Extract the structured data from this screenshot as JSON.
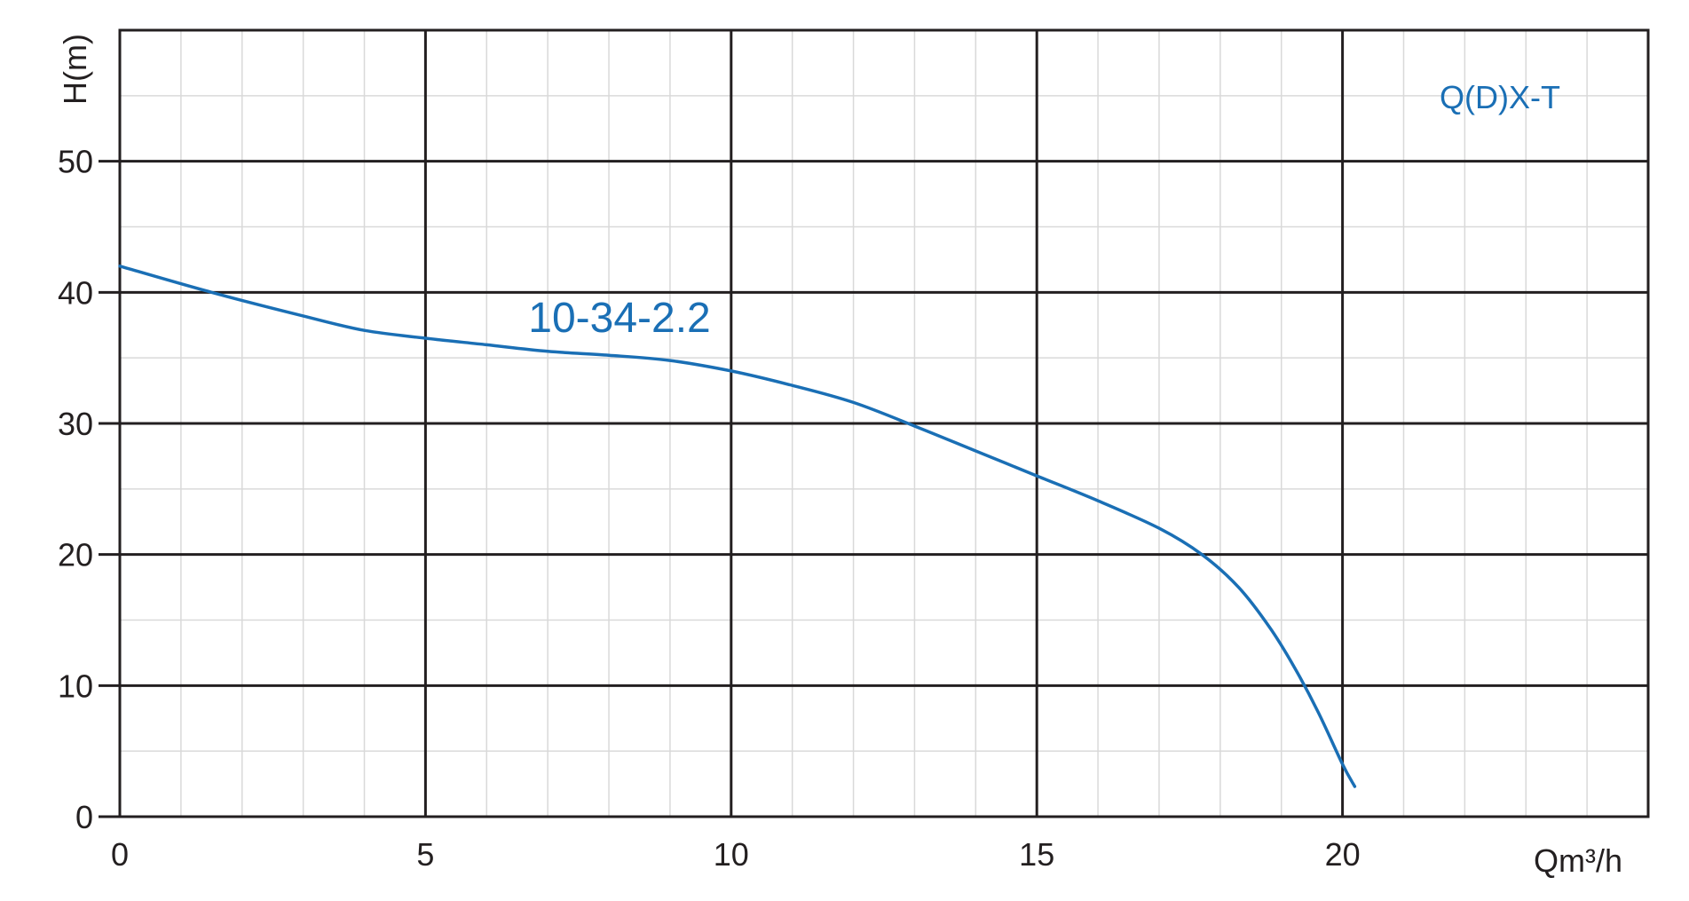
{
  "chart_data": {
    "type": "line",
    "model_label": "Q(D)X-T",
    "xlabel": "Qm³/h",
    "ylabel": "H(m)",
    "xlim": [
      0,
      25
    ],
    "ylim": [
      0,
      60
    ],
    "x_ticks": [
      "0",
      "5",
      "10",
      "15",
      "20"
    ],
    "y_ticks": [
      "0",
      "10",
      "20",
      "30",
      "40",
      "50"
    ],
    "grid": true,
    "series": [
      {
        "name": "10-34-2.2",
        "color": "#1a6fb5",
        "x": [
          0,
          1.5,
          3,
          4,
          5,
          6,
          7,
          8,
          9,
          10,
          11,
          12,
          13,
          14,
          15,
          16,
          17,
          17.7,
          18.3,
          18.8,
          19.2,
          19.6,
          20.0,
          20.2
        ],
        "y": [
          42,
          40,
          38.2,
          37.1,
          36.5,
          36,
          35.5,
          35.2,
          34.8,
          34,
          32.9,
          31.6,
          29.8,
          27.9,
          26,
          24.1,
          22,
          20,
          17.5,
          14.5,
          11.5,
          8,
          4,
          2.3
        ]
      }
    ]
  }
}
